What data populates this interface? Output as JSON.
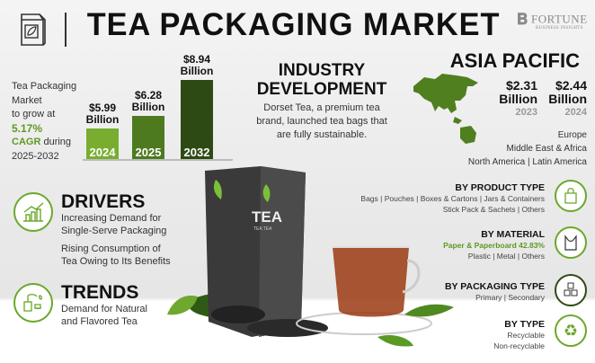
{
  "header": {
    "title": "TEA PACKAGING MARKET",
    "logo_brand": "FORTUNE",
    "logo_sub": "BUSINESS INSIGHTS"
  },
  "growth": {
    "line1": "Tea Packaging",
    "line2": "Market",
    "line3": "to grow at",
    "cagr": "5.17%",
    "cagr_label": "CAGR",
    "during": "during",
    "period": "2025-2032"
  },
  "chart_data": {
    "type": "bar",
    "categories": [
      "2024",
      "2025",
      "2032"
    ],
    "values": [
      5.99,
      6.28,
      8.94
    ],
    "labels": [
      "$5.99",
      "$6.28",
      "$8.94"
    ],
    "unit": "Billion",
    "colors": [
      "#78ad2f",
      "#4d7a1f",
      "#2e4a14"
    ]
  },
  "industry": {
    "title1": "INDUSTRY",
    "title2": "DEVELOPMENT",
    "text": "Dorset Tea, a premium tea brand, launched tea bags that are fully sustainable."
  },
  "region": {
    "title": "ASIA PACIFIC",
    "values": [
      {
        "amount": "$2.31",
        "unit": "Billion",
        "year": "2023"
      },
      {
        "amount": "$2.44",
        "unit": "Billion",
        "year": "2024"
      }
    ],
    "others": [
      "Europe",
      "Middle East & Africa",
      "North America | Latin America"
    ],
    "map_color": "#4f7f1f"
  },
  "drivers": {
    "title": "DRIVERS",
    "items": [
      "Increasing Demand for Single-Serve Packaging",
      "Rising Consumption of Tea Owing to Its Benefits"
    ]
  },
  "trends": {
    "title": "TRENDS",
    "items": [
      "Demand for Natural and Flavored Tea"
    ]
  },
  "product": {
    "box_title": "TEA",
    "box_sub": "TEA TEA"
  },
  "segments": [
    {
      "title": "BY PRODUCT TYPE",
      "lines": [
        "Bags | Pouches | Boxes & Cartons | Jars & Containers",
        "Stick Pack & Sachets | Others"
      ],
      "icon": "shopping-bag-icon"
    },
    {
      "title": "BY MATERIAL",
      "highlight": "Paper & Paperboard 42.83%",
      "lines": [
        "Plastic | Metal | Others"
      ],
      "icon": "plastic-bag-icon"
    },
    {
      "title": "BY PACKAGING TYPE",
      "lines": [
        "Primary | Secondary"
      ],
      "icon": "boxes-icon"
    },
    {
      "title": "BY TYPE",
      "lines": [
        "Recyclable",
        "Non-recyclable"
      ],
      "icon": "recycle-icon"
    }
  ],
  "accent": "#6aa82a"
}
